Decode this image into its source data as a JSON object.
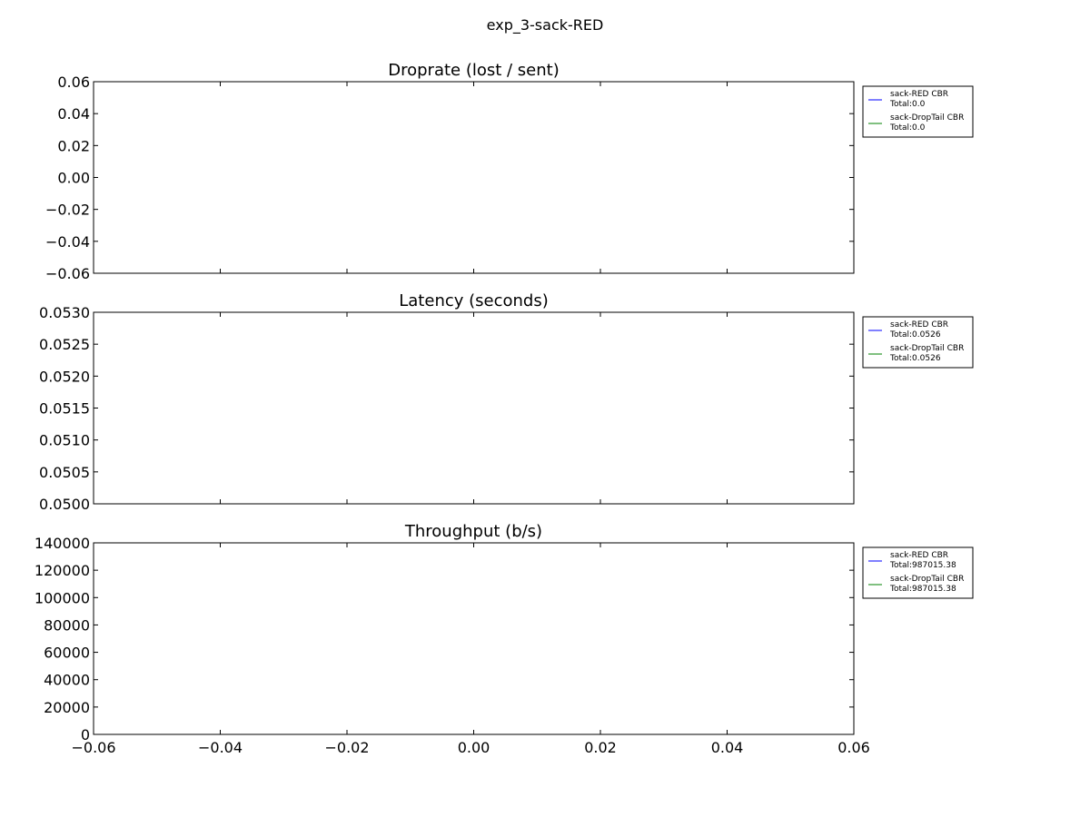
{
  "figure_title": "exp_3-sack-RED",
  "chart_data": [
    {
      "type": "line",
      "title": "Droprate (lost / sent)",
      "xlabel": "",
      "ylabel": "",
      "xlim": [
        -0.06,
        0.06
      ],
      "ylim": [
        -0.06,
        0.06
      ],
      "x_ticks": [],
      "y_ticks": [
        "−0.06",
        "−0.04",
        "−0.02",
        "0.00",
        "0.02",
        "0.04",
        "0.06"
      ],
      "grid": false,
      "legend_position": "outside-right-top",
      "series": [
        {
          "name": "sack-RED CBR\nTotal:0.0",
          "color": "#0000ff",
          "x": [],
          "y": []
        },
        {
          "name": "sack-DropTail CBR\nTotal:0.0",
          "color": "#008000",
          "x": [],
          "y": []
        }
      ]
    },
    {
      "type": "line",
      "title": "Latency (seconds)",
      "xlabel": "",
      "ylabel": "",
      "xlim": [
        -0.06,
        0.06
      ],
      "ylim": [
        0.05,
        0.053
      ],
      "x_ticks": [],
      "y_ticks": [
        "0.0500",
        "0.0505",
        "0.0510",
        "0.0515",
        "0.0520",
        "0.0525",
        "0.0530"
      ],
      "grid": false,
      "legend_position": "outside-right-top",
      "series": [
        {
          "name": "sack-RED CBR\nTotal:0.0526",
          "color": "#0000ff",
          "x": [],
          "y": []
        },
        {
          "name": "sack-DropTail CBR\nTotal:0.0526",
          "color": "#008000",
          "x": [],
          "y": []
        }
      ]
    },
    {
      "type": "line",
      "title": "Throughput (b/s)",
      "xlabel": "",
      "ylabel": "",
      "xlim": [
        -0.06,
        0.06
      ],
      "ylim": [
        0,
        140000
      ],
      "x_ticks": [
        "−0.06",
        "−0.04",
        "−0.02",
        "0.00",
        "0.02",
        "0.04",
        "0.06"
      ],
      "y_ticks": [
        "0",
        "20000",
        "40000",
        "60000",
        "80000",
        "100000",
        "120000",
        "140000"
      ],
      "grid": false,
      "legend_position": "outside-right-top",
      "series": [
        {
          "name": "sack-RED CBR\nTotal:987015.38",
          "color": "#0000ff",
          "x": [],
          "y": []
        },
        {
          "name": "sack-DropTail CBR\nTotal:987015.38",
          "color": "#008000",
          "x": [],
          "y": []
        }
      ]
    }
  ]
}
